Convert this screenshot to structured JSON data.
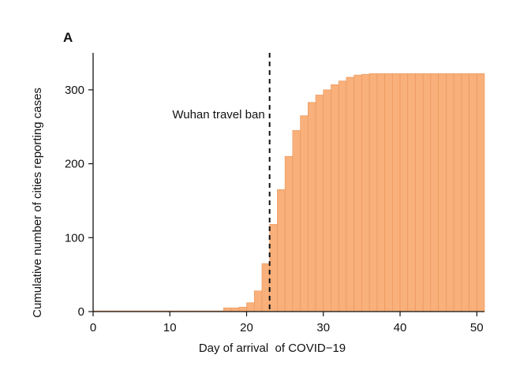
{
  "panel_label": "A",
  "chart_data": {
    "type": "bar",
    "xlabel": "Day of arrival  of COVID−19",
    "ylabel": "Cumulative number of cities reporting cases",
    "xlim": [
      0,
      51
    ],
    "ylim": [
      0,
      350
    ],
    "xticks": [
      0,
      10,
      20,
      30,
      40,
      50
    ],
    "yticks": [
      0,
      100,
      200,
      300
    ],
    "grid": false,
    "bar_color": "#f9b07a",
    "bar_edge_color": "#e8955a",
    "x": [
      0,
      1,
      2,
      3,
      4,
      5,
      6,
      7,
      8,
      9,
      10,
      11,
      12,
      13,
      14,
      15,
      16,
      17,
      18,
      19,
      20,
      21,
      22,
      23,
      24,
      25,
      26,
      27,
      28,
      29,
      30,
      31,
      32,
      33,
      34,
      35,
      36,
      37,
      38,
      39,
      40,
      41,
      42,
      43,
      44,
      45,
      46,
      47,
      48,
      49,
      50
    ],
    "values": [
      1,
      1,
      1,
      1,
      1,
      1,
      1,
      1,
      1,
      1,
      1,
      1,
      1,
      1,
      1,
      1,
      1,
      5,
      5,
      6,
      12,
      28,
      65,
      118,
      165,
      210,
      245,
      265,
      283,
      293,
      300,
      307,
      312,
      317,
      320,
      321,
      322,
      322,
      322,
      322,
      322,
      322,
      322,
      322,
      322,
      322,
      322,
      322,
      322,
      322,
      322
    ],
    "annotations": [
      {
        "x": 23,
        "label": "Wuhan travel ban",
        "style": "dashed-vertical-line"
      }
    ]
  }
}
